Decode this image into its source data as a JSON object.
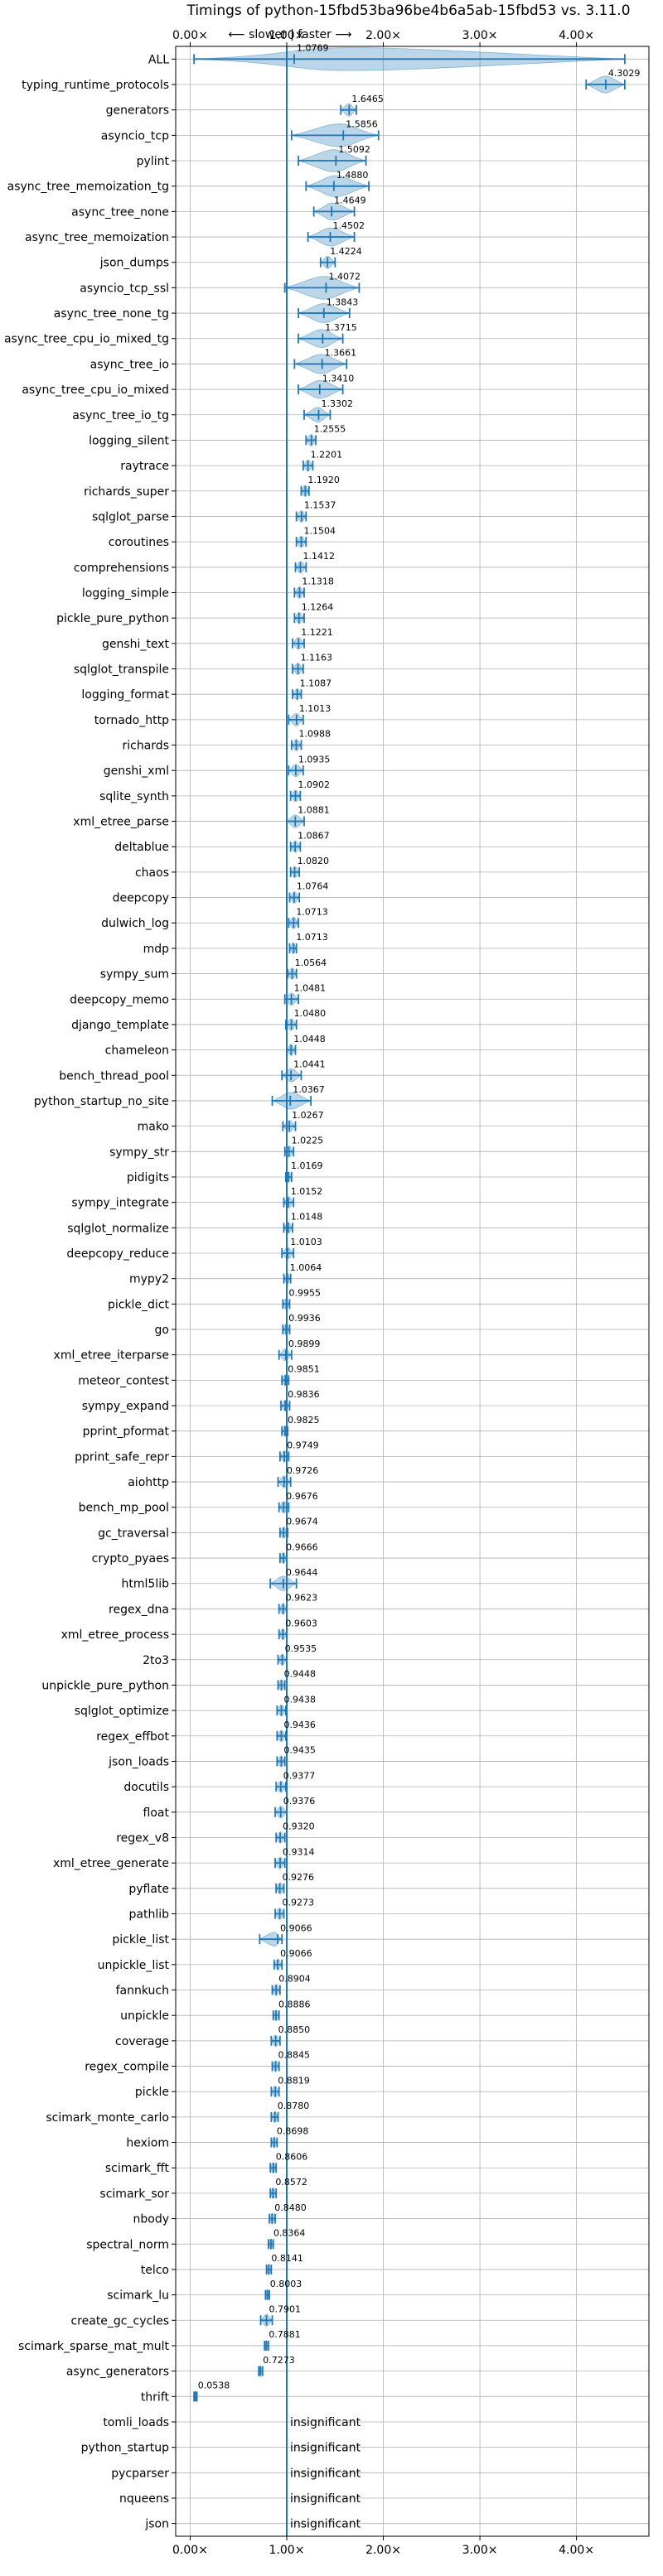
{
  "chart_data": {
    "type": "violin",
    "title": "Timings of python-15fbd53ba96be4b6a5ab-15fbd53 vs. 3.11.0",
    "xlim": [
      -0.15,
      4.75
    ],
    "x_ticks": [
      0,
      1,
      2,
      3,
      4
    ],
    "x_tick_labels": [
      "0.00×",
      "1.00×",
      "2.00×",
      "3.00×",
      "4.00×"
    ],
    "direction_note": "⟵ slower  |  faster ⟶",
    "reference_line_x": 1.0,
    "grid": true,
    "insignificant_label": "insignificant",
    "categories": [
      "ALL",
      "typing_runtime_protocols",
      "generators",
      "asyncio_tcp",
      "pylint",
      "async_tree_memoization_tg",
      "async_tree_none",
      "async_tree_memoization",
      "json_dumps",
      "asyncio_tcp_ssl",
      "async_tree_none_tg",
      "async_tree_cpu_io_mixed_tg",
      "async_tree_io",
      "async_tree_cpu_io_mixed",
      "async_tree_io_tg",
      "logging_silent",
      "raytrace",
      "richards_super",
      "sqlglot_parse",
      "coroutines",
      "comprehensions",
      "logging_simple",
      "pickle_pure_python",
      "genshi_text",
      "sqlglot_transpile",
      "logging_format",
      "tornado_http",
      "richards",
      "genshi_xml",
      "sqlite_synth",
      "xml_etree_parse",
      "deltablue",
      "chaos",
      "deepcopy",
      "dulwich_log",
      "mdp",
      "sympy_sum",
      "deepcopy_memo",
      "django_template",
      "chameleon",
      "bench_thread_pool",
      "python_startup_no_site",
      "mako",
      "sympy_str",
      "pidigits",
      "sympy_integrate",
      "sqlglot_normalize",
      "deepcopy_reduce",
      "mypy2",
      "pickle_dict",
      "go",
      "xml_etree_iterparse",
      "meteor_contest",
      "sympy_expand",
      "pprint_pformat",
      "pprint_safe_repr",
      "aiohttp",
      "bench_mp_pool",
      "gc_traversal",
      "crypto_pyaes",
      "html5lib",
      "regex_dna",
      "xml_etree_process",
      "2to3",
      "unpickle_pure_python",
      "sqlglot_optimize",
      "regex_effbot",
      "json_loads",
      "docutils",
      "float",
      "regex_v8",
      "xml_etree_generate",
      "pyflate",
      "pathlib",
      "pickle_list",
      "unpickle_list",
      "fannkuch",
      "unpickle",
      "coverage",
      "regex_compile",
      "pickle",
      "scimark_monte_carlo",
      "hexiom",
      "scimark_fft",
      "scimark_sor",
      "nbody",
      "spectral_norm",
      "telco",
      "scimark_lu",
      "create_gc_cycles",
      "scimark_sparse_mat_mult",
      "async_generators",
      "thrift",
      "tomli_loads",
      "python_startup",
      "pycparser",
      "nqueens",
      "json"
    ],
    "values": [
      1.0769,
      4.3029,
      1.6465,
      1.5856,
      1.5092,
      1.488,
      1.4649,
      1.4502,
      1.4224,
      1.4072,
      1.3843,
      1.3715,
      1.3661,
      1.341,
      1.3302,
      1.2555,
      1.2201,
      1.192,
      1.1537,
      1.1504,
      1.1412,
      1.1318,
      1.1264,
      1.1221,
      1.1163,
      1.1087,
      1.1013,
      1.0988,
      1.0935,
      1.0902,
      1.0881,
      1.0867,
      1.082,
      1.0764,
      1.0713,
      1.0713,
      1.0564,
      1.0481,
      1.048,
      1.0448,
      1.0441,
      1.0367,
      1.0267,
      1.0225,
      1.0169,
      1.0152,
      1.0148,
      1.0103,
      1.0064,
      0.9955,
      0.9936,
      0.9899,
      0.9851,
      0.9836,
      0.9825,
      0.9749,
      0.9726,
      0.9676,
      0.9674,
      0.9666,
      0.9644,
      0.9623,
      0.9603,
      0.9535,
      0.9448,
      0.9438,
      0.9436,
      0.9435,
      0.9377,
      0.9376,
      0.932,
      0.9314,
      0.9276,
      0.9273,
      0.9066,
      0.9066,
      0.8904,
      0.8886,
      0.885,
      0.8845,
      0.8819,
      0.878,
      0.8698,
      0.8606,
      0.8572,
      0.848,
      0.8364,
      0.8141,
      0.8003,
      0.7901,
      0.7881,
      0.7273,
      0.0538,
      null,
      null,
      null,
      null,
      null
    ],
    "value_labels": [
      "1.0769",
      "4.3029",
      "1.6465",
      "1.5856",
      "1.5092",
      "1.4880",
      "1.4649",
      "1.4502",
      "1.4224",
      "1.4072",
      "1.3843",
      "1.3715",
      "1.3661",
      "1.3410",
      "1.3302",
      "1.2555",
      "1.2201",
      "1.1920",
      "1.1537",
      "1.1504",
      "1.1412",
      "1.1318",
      "1.1264",
      "1.1221",
      "1.1163",
      "1.1087",
      "1.1013",
      "1.0988",
      "1.0935",
      "1.0902",
      "1.0881",
      "1.0867",
      "1.0820",
      "1.0764",
      "1.0713",
      "1.0713",
      "1.0564",
      "1.0481",
      "1.0480",
      "1.0448",
      "1.0441",
      "1.0367",
      "1.0267",
      "1.0225",
      "1.0169",
      "1.0152",
      "1.0148",
      "1.0103",
      "1.0064",
      "0.9955",
      "0.9936",
      "0.9899",
      "0.9851",
      "0.9836",
      "0.9825",
      "0.9749",
      "0.9726",
      "0.9676",
      "0.9674",
      "0.9666",
      "0.9644",
      "0.9623",
      "0.9603",
      "0.9535",
      "0.9448",
      "0.9438",
      "0.9436",
      "0.9435",
      "0.9377",
      "0.9376",
      "0.9320",
      "0.9314",
      "0.9276",
      "0.9273",
      "0.9066",
      "0.9066",
      "0.8904",
      "0.8886",
      "0.8850",
      "0.8845",
      "0.8819",
      "0.8780",
      "0.8698",
      "0.8606",
      "0.8572",
      "0.8480",
      "0.8364",
      "0.8141",
      "0.8003",
      "0.7901",
      "0.7881",
      "0.7273",
      "0.0538",
      "",
      "",
      "",
      "",
      ""
    ],
    "ranges": [
      [
        0.04,
        4.5
      ],
      [
        4.1,
        4.5
      ],
      [
        1.56,
        1.72
      ],
      [
        1.05,
        1.95
      ],
      [
        1.12,
        1.82
      ],
      [
        1.2,
        1.85
      ],
      [
        1.28,
        1.7
      ],
      [
        1.22,
        1.7
      ],
      [
        1.35,
        1.5
      ],
      [
        0.98,
        1.75
      ],
      [
        1.12,
        1.65
      ],
      [
        1.12,
        1.58
      ],
      [
        1.08,
        1.62
      ],
      [
        1.12,
        1.58
      ],
      [
        1.18,
        1.45
      ],
      [
        1.2,
        1.3
      ],
      [
        1.17,
        1.27
      ],
      [
        1.15,
        1.23
      ],
      [
        1.1,
        1.2
      ],
      [
        1.1,
        1.2
      ],
      [
        1.09,
        1.2
      ],
      [
        1.08,
        1.18
      ],
      [
        1.08,
        1.18
      ],
      [
        1.06,
        1.18
      ],
      [
        1.06,
        1.17
      ],
      [
        1.06,
        1.15
      ],
      [
        1.02,
        1.17
      ],
      [
        1.05,
        1.15
      ],
      [
        1.02,
        1.17
      ],
      [
        1.04,
        1.14
      ],
      [
        1.0,
        1.18
      ],
      [
        1.04,
        1.14
      ],
      [
        1.04,
        1.13
      ],
      [
        1.03,
        1.13
      ],
      [
        1.02,
        1.12
      ],
      [
        1.03,
        1.1
      ],
      [
        1.01,
        1.1
      ],
      [
        0.98,
        1.12
      ],
      [
        0.99,
        1.1
      ],
      [
        1.0,
        1.09
      ],
      [
        0.95,
        1.15
      ],
      [
        0.85,
        1.25
      ],
      [
        0.96,
        1.09
      ],
      [
        0.98,
        1.07
      ],
      [
        0.99,
        1.05
      ],
      [
        0.97,
        1.07
      ],
      [
        0.97,
        1.06
      ],
      [
        0.95,
        1.07
      ],
      [
        0.97,
        1.04
      ],
      [
        0.96,
        1.03
      ],
      [
        0.96,
        1.03
      ],
      [
        0.92,
        1.05
      ],
      [
        0.95,
        1.02
      ],
      [
        0.94,
        1.03
      ],
      [
        0.95,
        1.01
      ],
      [
        0.93,
        1.02
      ],
      [
        0.91,
        1.04
      ],
      [
        0.92,
        1.02
      ],
      [
        0.93,
        1.01
      ],
      [
        0.93,
        1.0
      ],
      [
        0.83,
        1.1
      ],
      [
        0.92,
        1.0
      ],
      [
        0.92,
        1.0
      ],
      [
        0.91,
        1.0
      ],
      [
        0.91,
        0.98
      ],
      [
        0.9,
        0.99
      ],
      [
        0.9,
        0.99
      ],
      [
        0.9,
        0.98
      ],
      [
        0.89,
        0.99
      ],
      [
        0.88,
        1.0
      ],
      [
        0.89,
        0.98
      ],
      [
        0.88,
        0.98
      ],
      [
        0.89,
        0.97
      ],
      [
        0.88,
        0.97
      ],
      [
        0.72,
        0.95
      ],
      [
        0.87,
        0.95
      ],
      [
        0.85,
        0.93
      ],
      [
        0.86,
        0.92
      ],
      [
        0.84,
        0.93
      ],
      [
        0.85,
        0.92
      ],
      [
        0.84,
        0.92
      ],
      [
        0.84,
        0.91
      ],
      [
        0.84,
        0.9
      ],
      [
        0.83,
        0.89
      ],
      [
        0.83,
        0.89
      ],
      [
        0.82,
        0.88
      ],
      [
        0.81,
        0.86
      ],
      [
        0.79,
        0.84
      ],
      [
        0.78,
        0.82
      ],
      [
        0.73,
        0.85
      ],
      [
        0.77,
        0.81
      ],
      [
        0.71,
        0.75
      ],
      [
        0.04,
        0.07
      ],
      null,
      null,
      null,
      null,
      null
    ]
  }
}
